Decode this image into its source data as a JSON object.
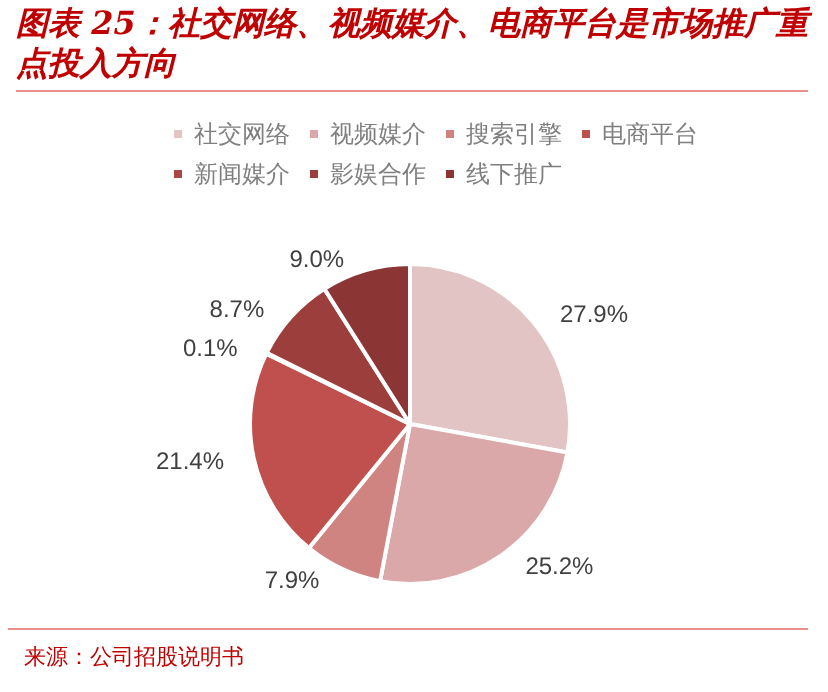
{
  "chart_data": {
    "type": "pie",
    "title": "图表 25：社交网络、视频媒介、电商平台是市场推广重点投入方向",
    "categories": [
      "社交网络",
      "视频媒介",
      "搜索引擎",
      "电商平台",
      "新闻媒介",
      "影娱合作",
      "线下推广"
    ],
    "values": [
      27.9,
      25.2,
      7.9,
      21.4,
      0.1,
      8.7,
      9.0
    ],
    "value_labels": [
      "27.9%",
      "25.2%",
      "7.9%",
      "21.4%",
      "0.1%",
      "8.7%",
      "9.0%"
    ],
    "colors": [
      "#e3c4c5",
      "#daa8a9",
      "#cf8482",
      "#c0504d",
      "#a84744",
      "#9b3e3c",
      "#8b3534"
    ],
    "legend": "top",
    "annotations": [
      "来源：公司招股说明书"
    ]
  }
}
